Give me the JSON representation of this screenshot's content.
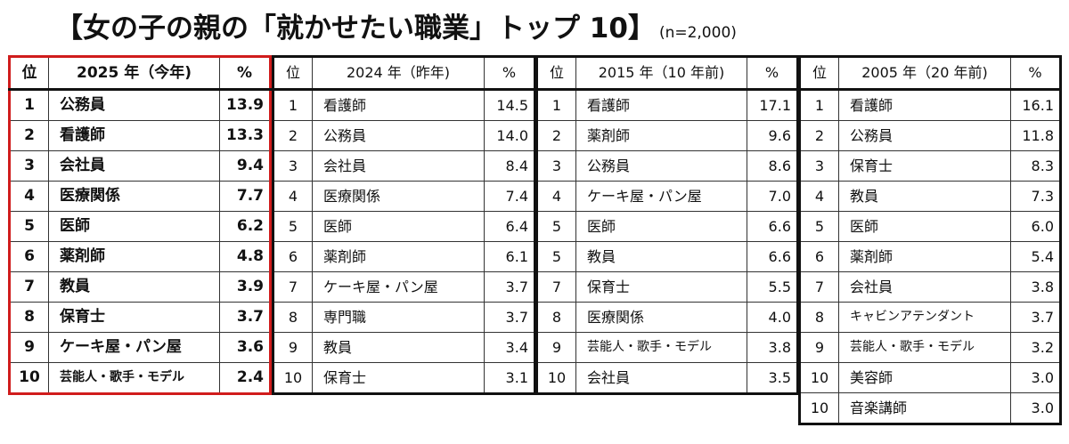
{
  "title": {
    "main": "【女の子の親の「就かせたい職業」トップ 10】",
    "sub": "(n=2,000)"
  },
  "tables": [
    {
      "id": "t2025",
      "headers": [
        "位",
        "2025 年（今年)",
        "%"
      ],
      "rows": [
        {
          "rank": "1",
          "job": "公務員",
          "pct": "13.9"
        },
        {
          "rank": "2",
          "job": "看護師",
          "pct": "13.3"
        },
        {
          "rank": "3",
          "job": "会社員",
          "pct": "9.4"
        },
        {
          "rank": "4",
          "job": "医療関係",
          "pct": "7.7"
        },
        {
          "rank": "5",
          "job": "医師",
          "pct": "6.2"
        },
        {
          "rank": "6",
          "job": "薬剤師",
          "pct": "4.8"
        },
        {
          "rank": "7",
          "job": "教員",
          "pct": "3.9"
        },
        {
          "rank": "8",
          "job": "保育士",
          "pct": "3.7"
        },
        {
          "rank": "9",
          "job": "ケーキ屋・パン屋",
          "pct": "3.6"
        },
        {
          "rank": "10",
          "job": "芸能人・歌手・モデル",
          "pct": "2.4"
        }
      ]
    },
    {
      "id": "t2024",
      "headers": [
        "位",
        "2024 年（昨年)",
        "%"
      ],
      "rows": [
        {
          "rank": "1",
          "job": "看護師",
          "pct": "14.5"
        },
        {
          "rank": "2",
          "job": "公務員",
          "pct": "14.0"
        },
        {
          "rank": "3",
          "job": "会社員",
          "pct": "8.4"
        },
        {
          "rank": "4",
          "job": "医療関係",
          "pct": "7.4"
        },
        {
          "rank": "5",
          "job": "医師",
          "pct": "6.4"
        },
        {
          "rank": "6",
          "job": "薬剤師",
          "pct": "6.1"
        },
        {
          "rank": "7",
          "job": "ケーキ屋・パン屋",
          "pct": "3.7"
        },
        {
          "rank": "8",
          "job": "専門職",
          "pct": "3.7"
        },
        {
          "rank": "9",
          "job": "教員",
          "pct": "3.4"
        },
        {
          "rank": "10",
          "job": "保育士",
          "pct": "3.1"
        }
      ]
    },
    {
      "id": "t2015",
      "headers": [
        "位",
        "2015 年（10 年前)",
        "%"
      ],
      "rows": [
        {
          "rank": "1",
          "job": "看護師",
          "pct": "17.1"
        },
        {
          "rank": "2",
          "job": "薬剤師",
          "pct": "9.6"
        },
        {
          "rank": "3",
          "job": "公務員",
          "pct": "8.6"
        },
        {
          "rank": "4",
          "job": "ケーキ屋・パン屋",
          "pct": "7.0"
        },
        {
          "rank": "5",
          "job": "医師",
          "pct": "6.6"
        },
        {
          "rank": "5",
          "job": "教員",
          "pct": "6.6"
        },
        {
          "rank": "7",
          "job": "保育士",
          "pct": "5.5"
        },
        {
          "rank": "8",
          "job": "医療関係",
          "pct": "4.0"
        },
        {
          "rank": "9",
          "job": "芸能人・歌手・モデル",
          "pct": "3.8"
        },
        {
          "rank": "10",
          "job": "会社員",
          "pct": "3.5"
        }
      ]
    },
    {
      "id": "t2005",
      "headers": [
        "位",
        "2005 年（20 年前)",
        "%"
      ],
      "rows": [
        {
          "rank": "1",
          "job": "看護師",
          "pct": "16.1"
        },
        {
          "rank": "2",
          "job": "公務員",
          "pct": "11.8"
        },
        {
          "rank": "3",
          "job": "保育士",
          "pct": "8.3"
        },
        {
          "rank": "4",
          "job": "教員",
          "pct": "7.3"
        },
        {
          "rank": "5",
          "job": "医師",
          "pct": "6.0"
        },
        {
          "rank": "6",
          "job": "薬剤師",
          "pct": "5.4"
        },
        {
          "rank": "7",
          "job": "会社員",
          "pct": "3.8"
        },
        {
          "rank": "8",
          "job": "キャビンアテンダント",
          "pct": "3.7"
        },
        {
          "rank": "9",
          "job": "芸能人・歌手・モデル",
          "pct": "3.2"
        },
        {
          "rank": "10",
          "job": "美容師",
          "pct": "3.0"
        },
        {
          "rank": "10",
          "job": "音楽講師",
          "pct": "3.0"
        }
      ]
    }
  ],
  "colors": {
    "highlight_border": "#d01c1c",
    "border": "#111111"
  }
}
